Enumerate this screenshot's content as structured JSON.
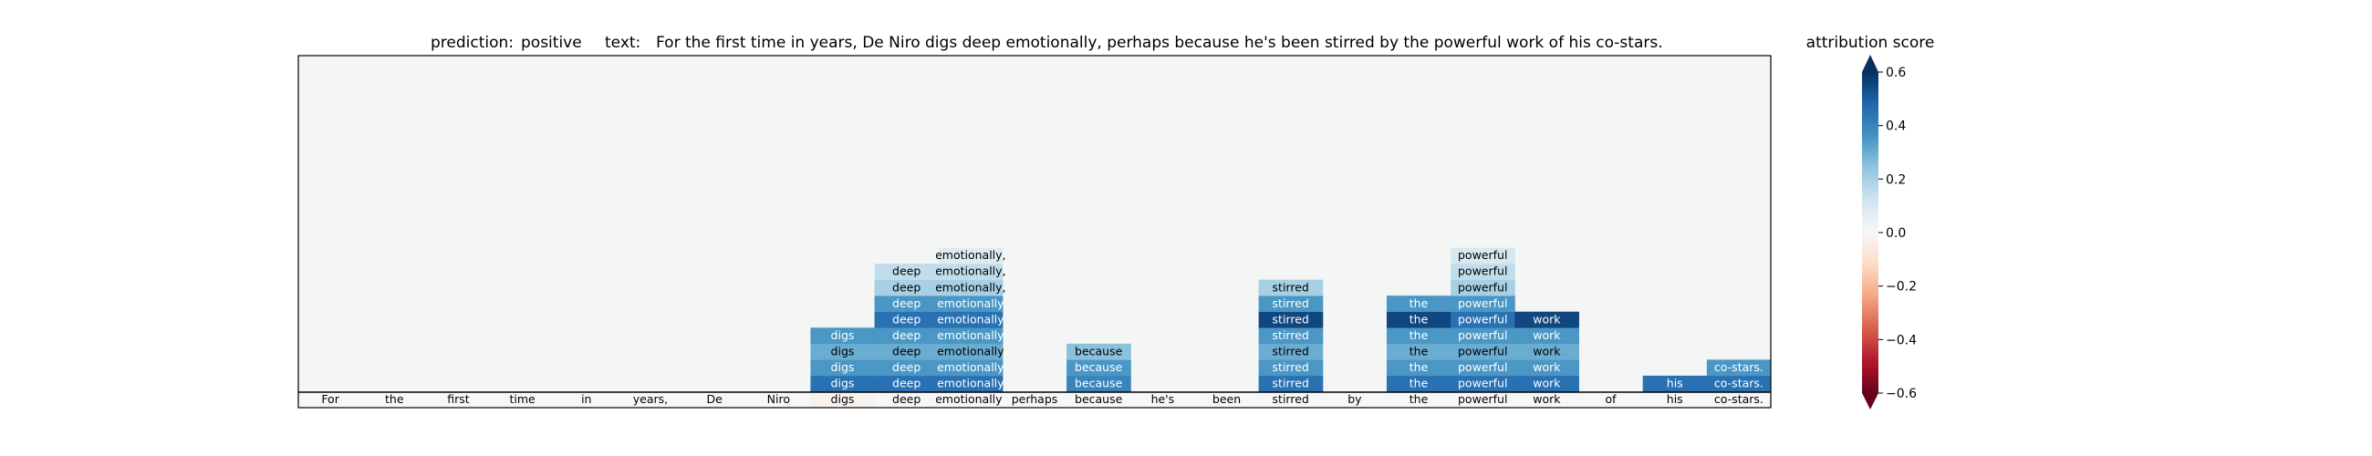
{
  "title": {
    "prediction_label": "prediction:",
    "prediction_value": "positive",
    "text_label": "text:",
    "text_value": "For the first time in years, De Niro digs deep emotionally, perhaps because he's been stirred by the powerful work of his co-stars."
  },
  "colorbar": {
    "title": "attribution score",
    "ticks": [
      "0.6",
      "0.4",
      "0.2",
      "0.0",
      "−0.2",
      "−0.4",
      "−0.6"
    ],
    "tick_values": [
      0.6,
      0.4,
      0.2,
      0.0,
      -0.2,
      -0.4,
      -0.6
    ],
    "vmin": -0.6,
    "vmax": 0.6,
    "colormap": "RdBu",
    "extend": "both"
  },
  "chart_data": {
    "type": "heatmap",
    "title": "prediction:  positive     text:  For the first time in years, De Niro digs deep emotionally, perhaps because he's been stirred by the powerful work of his co-stars.",
    "tokens": [
      "For",
      "the",
      "first",
      "time",
      "in",
      "years,",
      "De",
      "Niro",
      "digs",
      "deep",
      "emotionally,",
      "perhaps",
      "because",
      "he's",
      "been",
      "stirred",
      "by",
      "the",
      "powerful",
      "work",
      "of",
      "his",
      "co-stars."
    ],
    "n_rows": 22,
    "background_value": 0.0,
    "bottom_row_values": [
      0.0,
      0.0,
      0.0,
      0.0,
      0.0,
      0.0,
      0.0,
      0.0,
      -0.02,
      0.0,
      0.0,
      0.0,
      0.0,
      0.0,
      0.0,
      0.0,
      0.0,
      0.0,
      0.0,
      0.0,
      0.0,
      0.0,
      0.0
    ],
    "cells": [
      {
        "row": 1,
        "col": 8,
        "label": "digs",
        "value": 0.45
      },
      {
        "row": 1,
        "col": 9,
        "label": "deep",
        "value": 0.45
      },
      {
        "row": 1,
        "col": 10,
        "label": "emotionally",
        "value": 0.45
      },
      {
        "row": 1,
        "col": 12,
        "label": "because",
        "value": 0.4
      },
      {
        "row": 1,
        "col": 15,
        "label": "stirred",
        "value": 0.45
      },
      {
        "row": 1,
        "col": 17,
        "label": "the",
        "value": 0.45
      },
      {
        "row": 1,
        "col": 18,
        "label": "powerful",
        "value": 0.45
      },
      {
        "row": 1,
        "col": 19,
        "label": "work",
        "value": 0.45
      },
      {
        "row": 1,
        "col": 21,
        "label": "his",
        "value": 0.45
      },
      {
        "row": 1,
        "col": 22,
        "label": "co-stars.",
        "value": 0.45
      },
      {
        "row": 2,
        "col": 8,
        "label": "digs",
        "value": 0.35
      },
      {
        "row": 2,
        "col": 9,
        "label": "deep",
        "value": 0.35
      },
      {
        "row": 2,
        "col": 10,
        "label": "emotionally",
        "value": 0.35
      },
      {
        "row": 2,
        "col": 12,
        "label": "because",
        "value": 0.35
      },
      {
        "row": 2,
        "col": 15,
        "label": "stirred",
        "value": 0.35
      },
      {
        "row": 2,
        "col": 17,
        "label": "the",
        "value": 0.35
      },
      {
        "row": 2,
        "col": 18,
        "label": "powerful",
        "value": 0.35
      },
      {
        "row": 2,
        "col": 19,
        "label": "work",
        "value": 0.35
      },
      {
        "row": 2,
        "col": 22,
        "label": "co-stars.",
        "value": 0.35
      },
      {
        "row": 3,
        "col": 8,
        "label": "digs",
        "value": 0.3
      },
      {
        "row": 3,
        "col": 9,
        "label": "deep",
        "value": 0.3
      },
      {
        "row": 3,
        "col": 10,
        "label": "emotionally",
        "value": 0.3
      },
      {
        "row": 3,
        "col": 12,
        "label": "because",
        "value": 0.25
      },
      {
        "row": 3,
        "col": 15,
        "label": "stirred",
        "value": 0.3
      },
      {
        "row": 3,
        "col": 17,
        "label": "the",
        "value": 0.3
      },
      {
        "row": 3,
        "col": 18,
        "label": "powerful",
        "value": 0.3
      },
      {
        "row": 3,
        "col": 19,
        "label": "work",
        "value": 0.3
      },
      {
        "row": 4,
        "col": 8,
        "label": "digs",
        "value": 0.35
      },
      {
        "row": 4,
        "col": 9,
        "label": "deep",
        "value": 0.35
      },
      {
        "row": 4,
        "col": 10,
        "label": "emotionally",
        "value": 0.35
      },
      {
        "row": 4,
        "col": 15,
        "label": "stirred",
        "value": 0.35
      },
      {
        "row": 4,
        "col": 17,
        "label": "the",
        "value": 0.35
      },
      {
        "row": 4,
        "col": 18,
        "label": "powerful",
        "value": 0.35
      },
      {
        "row": 4,
        "col": 19,
        "label": "work",
        "value": 0.35
      },
      {
        "row": 5,
        "col": 9,
        "label": "deep",
        "value": 0.45
      },
      {
        "row": 5,
        "col": 10,
        "label": "emotionally",
        "value": 0.45
      },
      {
        "row": 5,
        "col": 15,
        "label": "stirred",
        "value": 0.55
      },
      {
        "row": 5,
        "col": 17,
        "label": "the",
        "value": 0.55
      },
      {
        "row": 5,
        "col": 18,
        "label": "powerful",
        "value": 0.45
      },
      {
        "row": 5,
        "col": 19,
        "label": "work",
        "value": 0.55
      },
      {
        "row": 6,
        "col": 9,
        "label": "deep",
        "value": 0.35
      },
      {
        "row": 6,
        "col": 10,
        "label": "emotionally",
        "value": 0.35
      },
      {
        "row": 6,
        "col": 15,
        "label": "stirred",
        "value": 0.35
      },
      {
        "row": 6,
        "col": 17,
        "label": "the",
        "value": 0.35
      },
      {
        "row": 6,
        "col": 18,
        "label": "powerful",
        "value": 0.35
      },
      {
        "row": 7,
        "col": 9,
        "label": "deep",
        "value": 0.2
      },
      {
        "row": 7,
        "col": 10,
        "label": "emotionally,",
        "value": 0.2
      },
      {
        "row": 7,
        "col": 15,
        "label": "stirred",
        "value": 0.2
      },
      {
        "row": 7,
        "col": 18,
        "label": "powerful",
        "value": 0.2
      },
      {
        "row": 8,
        "col": 9,
        "label": "deep",
        "value": 0.15
      },
      {
        "row": 8,
        "col": 10,
        "label": "emotionally,",
        "value": 0.15
      },
      {
        "row": 8,
        "col": 18,
        "label": "powerful",
        "value": 0.15
      },
      {
        "row": 9,
        "col": 10,
        "label": "emotionally,",
        "value": 0.08
      },
      {
        "row": 9,
        "col": 18,
        "label": "powerful",
        "value": 0.1
      }
    ]
  }
}
